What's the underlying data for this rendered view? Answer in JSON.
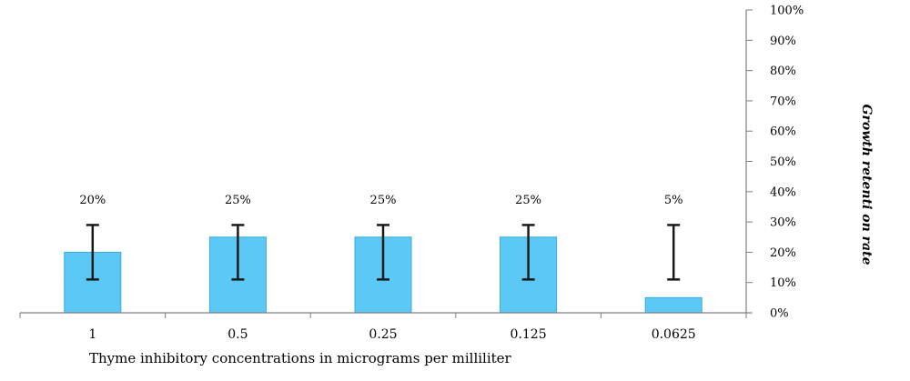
{
  "chart_data": {
    "type": "bar",
    "categories": [
      "1",
      "0.5",
      "0.25",
      "0.125",
      "0.0625"
    ],
    "values": [
      20,
      25,
      25,
      25,
      5
    ],
    "data_labels": [
      "20%",
      "25%",
      "25%",
      "25%",
      "5%"
    ],
    "error_bars": [
      {
        "low": 11,
        "high": 29
      },
      {
        "low": 11,
        "high": 29
      },
      {
        "low": 11,
        "high": 29
      },
      {
        "low": 11,
        "high": 29
      },
      {
        "low": 11,
        "high": 29
      }
    ],
    "xlabel": "Thyme inhibitory concentrations in micrograms per milliliter",
    "ylabel": "Growth retenti on rate",
    "ylim": [
      0,
      100
    ],
    "yticks": [
      "0%",
      "10%",
      "20%",
      "30%",
      "40%",
      "50%",
      "60%",
      "70%",
      "80%",
      "90%",
      "100%"
    ],
    "y_axis_position": "right",
    "grid": false,
    "legend": "none",
    "colors": {
      "bar_fill": "#5bc8f5",
      "bar_stroke": "#3aa9dc",
      "error_bar": "#1a1a1a",
      "axis": "#7f7f7f"
    }
  }
}
